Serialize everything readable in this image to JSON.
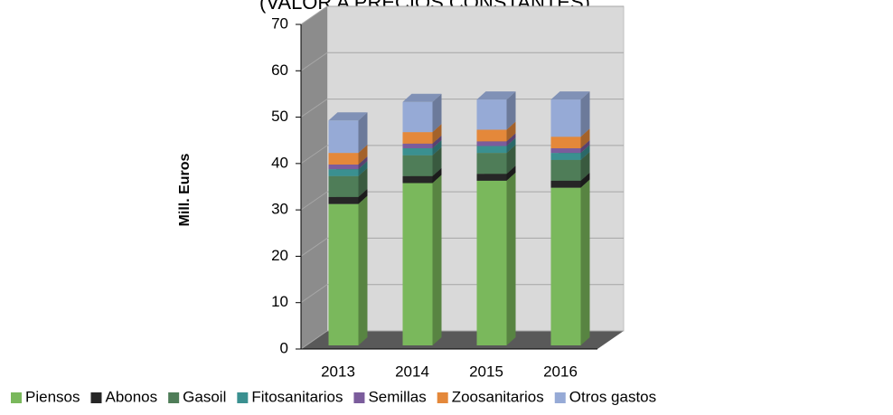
{
  "chart_data": {
    "type": "bar3d_stacked",
    "title": "(VALOR A PRECIOS CONSTANTES)",
    "y_label": "Mill. Euros",
    "categories": [
      "2013",
      "2014",
      "2015",
      "2016"
    ],
    "series": [
      {
        "name": "Piensos",
        "color": "#7ab85c",
        "values": [
          30.5,
          35,
          35.5,
          34
        ]
      },
      {
        "name": "Abonos",
        "color": "#262626",
        "values": [
          1.5,
          1.5,
          1.5,
          1.5
        ]
      },
      {
        "name": "Gasoil",
        "color": "#4f7d58",
        "values": [
          4.5,
          4.5,
          4.5,
          4.5
        ]
      },
      {
        "name": "Fitosanitarios",
        "color": "#3a9090",
        "values": [
          1.5,
          1.5,
          1.5,
          1.5
        ]
      },
      {
        "name": "Semillas",
        "color": "#7b5c9c",
        "values": [
          1,
          1,
          1,
          1
        ]
      },
      {
        "name": "Zoosanitarios",
        "color": "#e4883a",
        "values": [
          2.5,
          2.5,
          2.5,
          2.5
        ]
      },
      {
        "name": "Otros gastos",
        "color": "#96aad6",
        "values": [
          7,
          6.5,
          6.5,
          8
        ]
      }
    ],
    "ylim": [
      0,
      70
    ],
    "yticks": [
      0,
      10,
      20,
      30,
      40,
      50,
      60,
      70
    ],
    "grid": true
  }
}
